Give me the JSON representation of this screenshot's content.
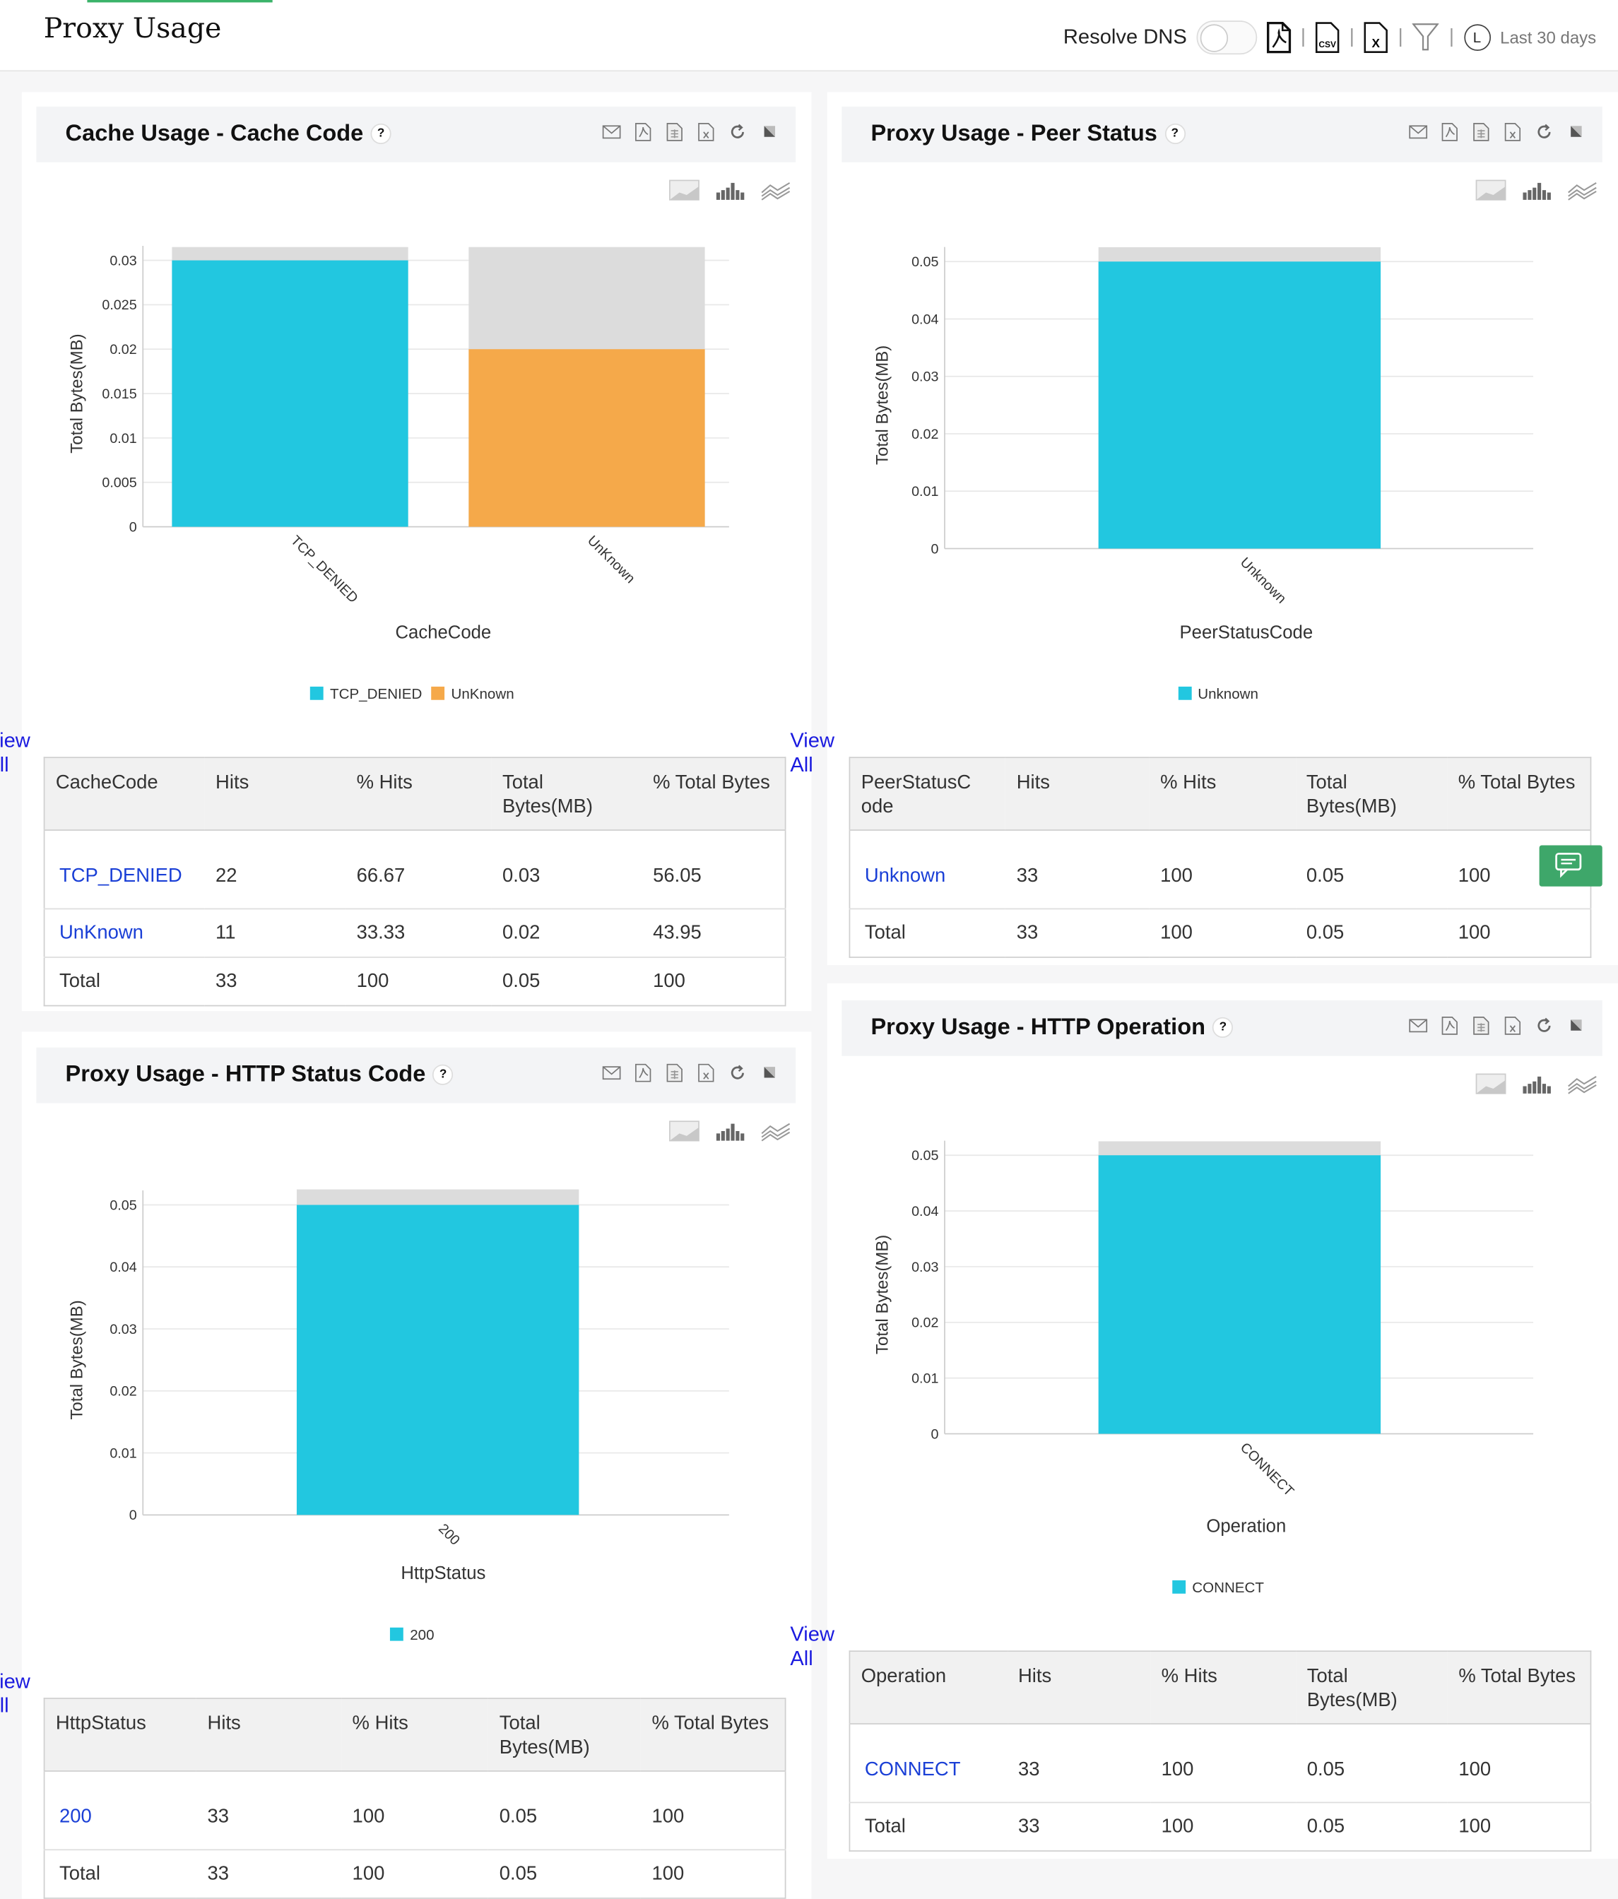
{
  "header": {
    "title": "Proxy Usage",
    "resolve_dns_label": "Resolve DNS",
    "resolve_dns_on": false,
    "time_range": "Last 30 days",
    "icons": [
      "pdf-export-icon",
      "csv-export-icon",
      "xls-export-icon",
      "filter-icon",
      "clock-icon"
    ]
  },
  "colors": {
    "primary": "#22c7e0",
    "secondary": "#f5a94a",
    "track": "#dcdcdc",
    "link": "#1a3fd6",
    "accent": "#3bb36a"
  },
  "panels": [
    {
      "title": "Cache Usage - Cache Code",
      "help": "?",
      "view_all": "View All",
      "table": {
        "columns": [
          "CacheCode",
          "Hits",
          "% Hits",
          "Total Bytes(MB)",
          "% Total Bytes"
        ],
        "rows": [
          [
            "TCP_DENIED",
            "22",
            "66.67",
            "0.03",
            "56.05"
          ],
          [
            "UnKnown",
            "11",
            "33.33",
            "0.02",
            "43.95"
          ],
          [
            "Total",
            "33",
            "100",
            "0.05",
            "100"
          ]
        ]
      }
    },
    {
      "title": "Proxy Usage - Peer Status",
      "help": "?",
      "view_all": "View All",
      "table": {
        "columns": [
          "PeerStatusCode",
          "Hits",
          "% Hits",
          "Total Bytes(MB)",
          "% Total Bytes"
        ],
        "rows": [
          [
            "Unknown",
            "33",
            "100",
            "0.05",
            "100"
          ],
          [
            "Total",
            "33",
            "100",
            "0.05",
            "100"
          ]
        ]
      }
    },
    {
      "title": "Proxy Usage - HTTP Status Code",
      "help": "?",
      "view_all": "View All",
      "table": {
        "columns": [
          "HttpStatus",
          "Hits",
          "% Hits",
          "Total Bytes(MB)",
          "% Total Bytes"
        ],
        "rows": [
          [
            "200",
            "33",
            "100",
            "0.05",
            "100"
          ],
          [
            "Total",
            "33",
            "100",
            "0.05",
            "100"
          ]
        ]
      }
    },
    {
      "title": "Proxy Usage - HTTP Operation",
      "help": "?",
      "view_all": "View All",
      "table": {
        "columns": [
          "Operation",
          "Hits",
          "% Hits",
          "Total Bytes(MB)",
          "% Total Bytes"
        ],
        "rows": [
          [
            "CONNECT",
            "33",
            "100",
            "0.05",
            "100"
          ],
          [
            "Total",
            "33",
            "100",
            "0.05",
            "100"
          ]
        ]
      }
    }
  ],
  "chart_data": [
    {
      "type": "bar",
      "categories": [
        "TCP_DENIED",
        "UnKnown"
      ],
      "values": [
        0.03,
        0.02
      ],
      "colors": [
        "#22c7e0",
        "#f5a94a"
      ],
      "xlabel": "CacheCode",
      "ylabel": "Total Bytes(MB)",
      "ylim": [
        0,
        0.03
      ],
      "yticks": [
        "0",
        "0.005",
        "0.01",
        "0.015",
        "0.02",
        "0.025",
        "0.03"
      ],
      "grid": true,
      "legend": "bottom"
    },
    {
      "type": "bar",
      "categories": [
        "Unknown"
      ],
      "values": [
        0.05
      ],
      "colors": [
        "#22c7e0"
      ],
      "xlabel": "PeerStatusCode",
      "ylabel": "Total Bytes(MB)",
      "ylim": [
        0,
        0.05
      ],
      "yticks": [
        "0",
        "0.01",
        "0.02",
        "0.03",
        "0.04",
        "0.05"
      ],
      "grid": true,
      "legend": "bottom"
    },
    {
      "type": "bar",
      "categories": [
        "200"
      ],
      "values": [
        0.05
      ],
      "colors": [
        "#22c7e0"
      ],
      "xlabel": "HttpStatus",
      "ylabel": "Total Bytes(MB)",
      "ylim": [
        0,
        0.05
      ],
      "yticks": [
        "0",
        "0.01",
        "0.02",
        "0.03",
        "0.04",
        "0.05"
      ],
      "grid": true,
      "legend": "bottom"
    },
    {
      "type": "bar",
      "categories": [
        "CONNECT"
      ],
      "values": [
        0.05
      ],
      "colors": [
        "#22c7e0"
      ],
      "xlabel": "Operation",
      "ylabel": "Total Bytes(MB)",
      "ylim": [
        0,
        0.05
      ],
      "yticks": [
        "0",
        "0.01",
        "0.02",
        "0.03",
        "0.04",
        "0.05"
      ],
      "grid": true,
      "legend": "bottom"
    }
  ]
}
